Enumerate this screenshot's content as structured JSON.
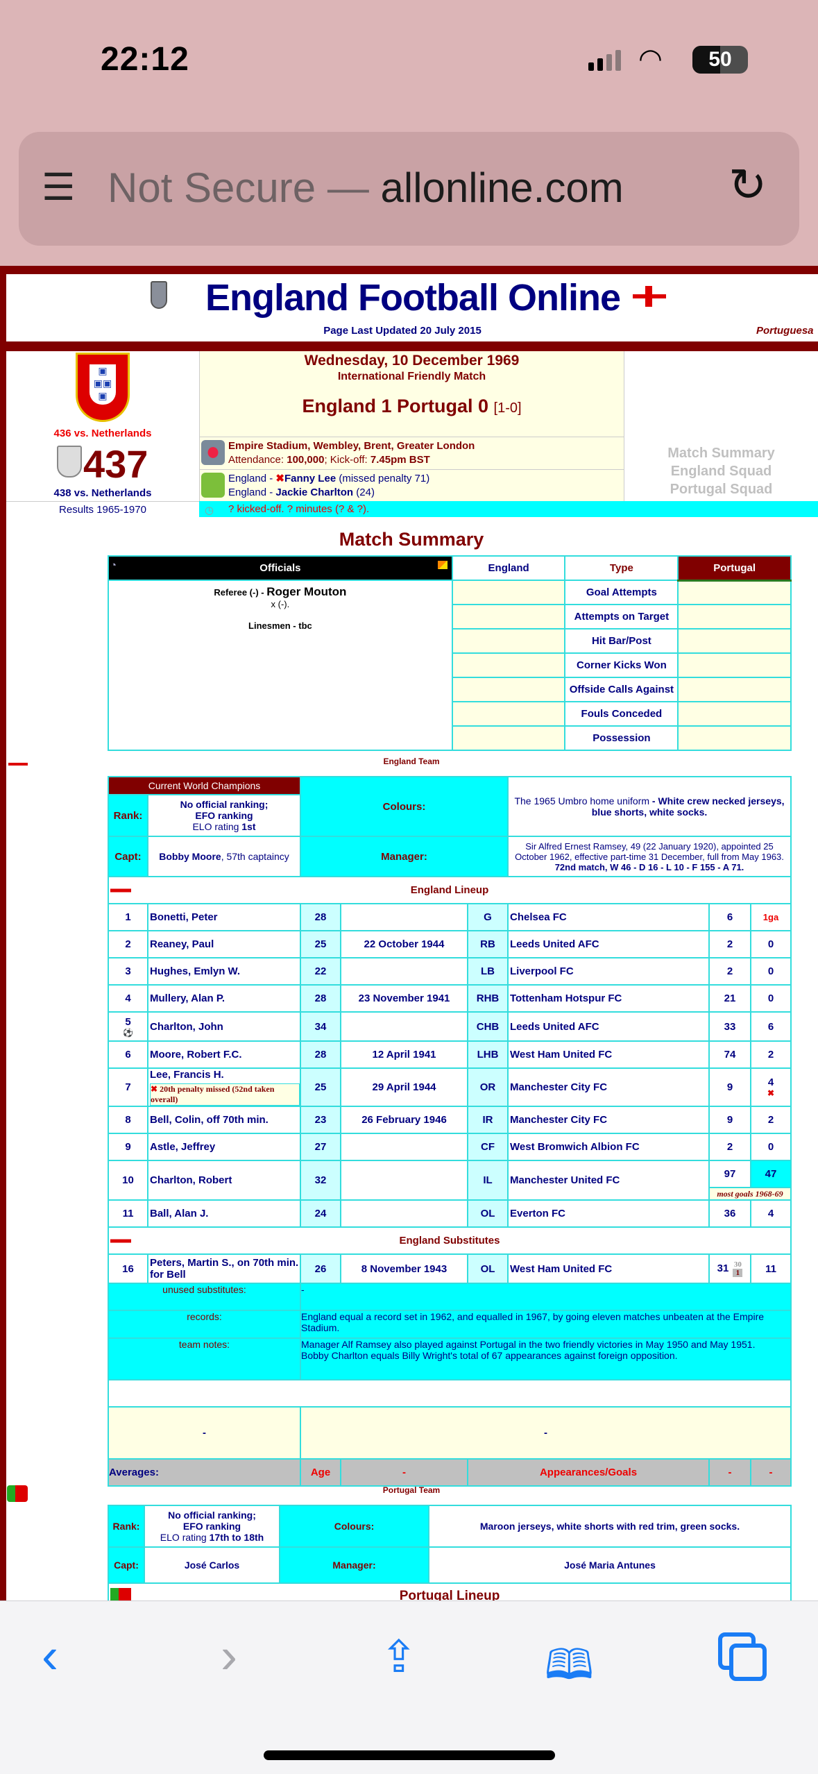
{
  "status_bar": {
    "time": "22:12",
    "battery": "50"
  },
  "browser": {
    "security_label": "Not Secure — ",
    "url_fragment": "allonline.com",
    "icons": [
      "reader-icon",
      "reload-icon"
    ]
  },
  "site": {
    "title": "England Football Online",
    "updated": "Page Last Updated 20 July 2015",
    "side_link": "Portuguesa"
  },
  "match": {
    "prev": "436 vs. Netherlands",
    "number": "437",
    "next": "438 vs. Netherlands",
    "results_link": "Results 1965-1970",
    "date": "Wednesday, 10 December 1969",
    "type": "International Friendly Match",
    "score": "England 1 Portugal 0",
    "halftime": "[1-0]",
    "venue": "Empire Stadium, Wembley, Brent, Greater London",
    "attendance_label": "Attendance: ",
    "attendance": "100,000",
    "kickoff_label": "; Kick-off: ",
    "kickoff": "7.45pm BST",
    "scorer1_team": "England - ",
    "scorer1": "Fanny Lee",
    "scorer1_note": " (missed penalty 71)",
    "scorer2_team": "England - ",
    "scorer2": "Jackie Charlton",
    "scorer2_note": " (24)",
    "kickoff_note": "? kicked-off. ? minutes (? & ?).",
    "links": [
      "Match Summary",
      "England Squad",
      "Portugal Squad"
    ]
  },
  "summary": {
    "title": "Match Summary",
    "officials_header": "Officials",
    "england": "England",
    "type": "Type",
    "portugal": "Portugal",
    "referee_label": "Referee (-) - ",
    "referee": "Roger Mouton",
    "referee_country": "x (-).",
    "linesmen": "Linesmen - tbc",
    "stats": [
      "Goal Attempts",
      "Attempts on Target",
      "Hit Bar/Post",
      "Corner Kicks Won",
      "Offside Calls Against",
      "Fouls Conceded",
      "Possession"
    ]
  },
  "england_team": {
    "label": "England Team",
    "champions": "Current World Champions",
    "rank_label": "Rank:",
    "rank1": "No official ranking;",
    "rank2": "EFO ranking",
    "elo_label": "ELO rating ",
    "elo": "1st",
    "colours_label": "Colours:",
    "colours_pre": "The 1965 Umbro home uniform ",
    "colours": "- White crew necked jerseys, blue shorts, white socks.",
    "capt_label": "Capt:",
    "capt": "Bobby Moore",
    "capt_note": ", 57th captaincy",
    "manager_label": "Manager:",
    "manager": "Sir Alfred Ernest Ramsey, 49 (22 January 1920), appointed 25 October 1962, effective part-time 31 December, full from May 1963.",
    "manager_record": "72nd match, W 46 - D 16 - L 10 - F 155 - A 71.",
    "lineup_title": "England Lineup",
    "lineup": [
      {
        "no": "1",
        "name": "Bonetti, Peter",
        "age": "28",
        "dob": "",
        "pos": "G",
        "club": "Chelsea FC",
        "caps": "6",
        "goals": "1ga"
      },
      {
        "no": "2",
        "name": "Reaney, Paul",
        "age": "25",
        "dob": "22 October 1944",
        "pos": "RB",
        "club": "Leeds United AFC",
        "caps": "2",
        "goals": "0"
      },
      {
        "no": "3",
        "name": "Hughes, Emlyn W.",
        "age": "22",
        "dob": "",
        "pos": "LB",
        "club": "Liverpool FC",
        "caps": "2",
        "goals": "0"
      },
      {
        "no": "4",
        "name": "Mullery, Alan P.",
        "age": "28",
        "dob": "23 November 1941",
        "pos": "RHB",
        "club": "Tottenham Hotspur FC",
        "caps": "21",
        "goals": "0"
      },
      {
        "no": "5",
        "name": "Charlton, John",
        "age": "34",
        "dob": "",
        "pos": "CHB",
        "club": "Leeds United AFC",
        "caps": "33",
        "goals": "6",
        "scored": true
      },
      {
        "no": "6",
        "name": "Moore, Robert F.C.",
        "age": "28",
        "dob": "12 April 1941",
        "pos": "LHB",
        "club": "West Ham United FC",
        "caps": "74",
        "goals": "2"
      },
      {
        "no": "7",
        "name": "Lee, Francis H.",
        "age": "25",
        "dob": "29 April 1944",
        "pos": "OR",
        "club": "Manchester City FC",
        "caps": "9",
        "goals": "4",
        "note": "20th penalty missed (52nd taken overall)"
      },
      {
        "no": "8",
        "name": "Bell, Colin, off 70th min.",
        "age": "23",
        "dob": "26 February 1946",
        "pos": "IR",
        "club": "Manchester City FC",
        "caps": "9",
        "goals": "2"
      },
      {
        "no": "9",
        "name": "Astle, Jeffrey",
        "age": "27",
        "dob": "",
        "pos": "CF",
        "club": "West Bromwich Albion FC",
        "caps": "2",
        "goals": "0"
      },
      {
        "no": "10",
        "name": "Charlton, Robert",
        "age": "32",
        "dob": "",
        "pos": "IL",
        "club": "Manchester United FC",
        "caps": "97",
        "goals": "47",
        "note": "most goals 1968-69"
      },
      {
        "no": "11",
        "name": "Ball, Alan J.",
        "age": "24",
        "dob": "",
        "pos": "OL",
        "club": "Everton FC",
        "caps": "36",
        "goals": "4"
      }
    ],
    "subs_title": "England Substitutes",
    "subs": [
      {
        "no": "16",
        "name": "Peters, Martin S., on 70th min. for Bell",
        "age": "26",
        "dob": "8 November 1943",
        "pos": "OL",
        "club": "West Ham United FC",
        "caps": "31",
        "caps_sub_top": "30",
        "caps_sub_bottom": "1",
        "goals": "11"
      }
    ],
    "unused_label": "unused substitutes:",
    "unused": "-",
    "records_label": "records:",
    "records": "England equal a record set in 1962, and equalled in 1967, by going eleven matches unbeaten at the Empire Stadium.",
    "notes_label": "team notes:",
    "notes1": "Manager Alf Ramsey also played against Portugal in the two friendly victories in May 1950 and May 1951.",
    "notes2": "Bobby Charlton equals Billy Wright's total of 67 appearances against foreign opposition.",
    "yellow_left": "-",
    "yellow_right": "-",
    "averages_label": "Averages:",
    "avg_age": "Age",
    "avg_dash1": "-",
    "avg_appgoals": "Appearances/Goals",
    "avg_dash2": "-",
    "avg_dash3": "-"
  },
  "portugal_team": {
    "label": "Portugal Team",
    "rank_label": "Rank:",
    "rank1": "No official ranking;",
    "rank2": "EFO ranking",
    "elo_label": "ELO rating ",
    "elo": "17th to 18th",
    "colours_label": "Colours:",
    "colours": "Maroon jerseys, white shorts with red trim, green socks.",
    "capt_label": "Capt:",
    "capt": "José Carlos",
    "manager_label": "Manager:",
    "manager": "José Maria Antunes",
    "lineup_title": "Portugal Lineup"
  },
  "colors": {
    "maroon": "#800000",
    "navy": "#000080",
    "cyan": "#00ffff",
    "cream": "#ffffe4"
  }
}
